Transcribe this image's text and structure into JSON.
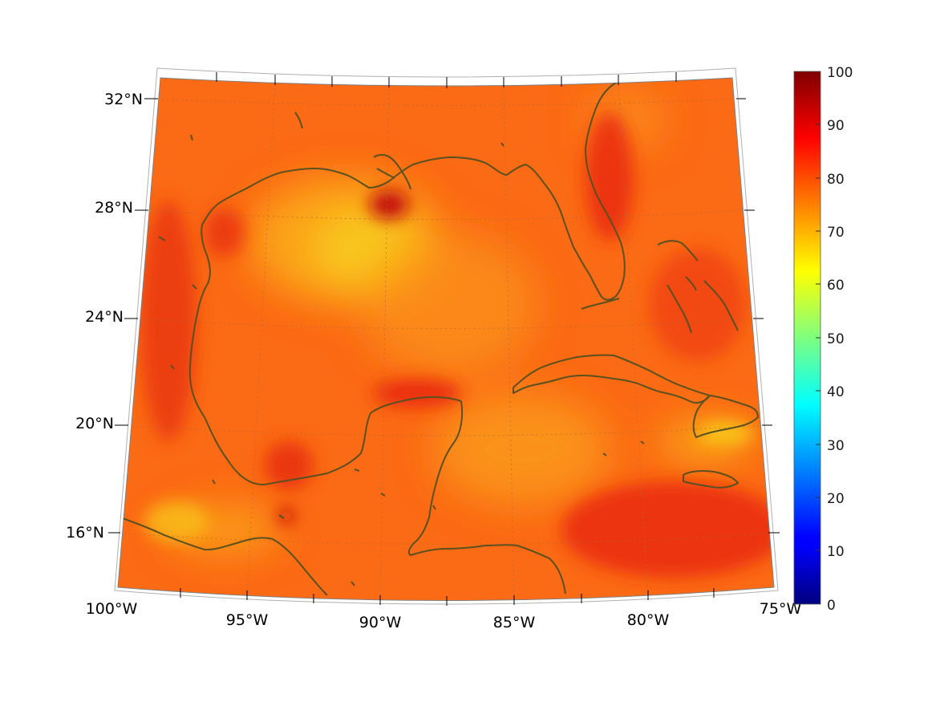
{
  "map": {
    "lon_labels": [
      "100°W",
      "95°W",
      "90°W",
      "85°W",
      "80°W",
      "75°W"
    ],
    "lat_labels": [
      "32°N",
      "28°N",
      "24°N",
      "20°N",
      "16°N"
    ],
    "extent": {
      "lon_min": -100,
      "lon_max": -75,
      "lat_min": 14,
      "lat_max": 33
    },
    "coastline_color": "#5a5020",
    "grid_style": "dotted"
  },
  "colorbar": {
    "ticks": [
      "100",
      "90",
      "80",
      "70",
      "60",
      "50",
      "40",
      "30",
      "20",
      "10",
      "0"
    ],
    "range": [
      0,
      100
    ],
    "colormap": "jet"
  },
  "chart_data": {
    "type": "heatmap",
    "title": "",
    "xlabel": "",
    "ylabel": "",
    "xlim": [
      -100,
      -75
    ],
    "ylim": [
      14,
      33
    ],
    "color_range": [
      0,
      100
    ],
    "typical_range": [
      65,
      92
    ],
    "colorbar_ticks": [
      0,
      10,
      20,
      30,
      40,
      50,
      60,
      70,
      80,
      90,
      100
    ]
  }
}
